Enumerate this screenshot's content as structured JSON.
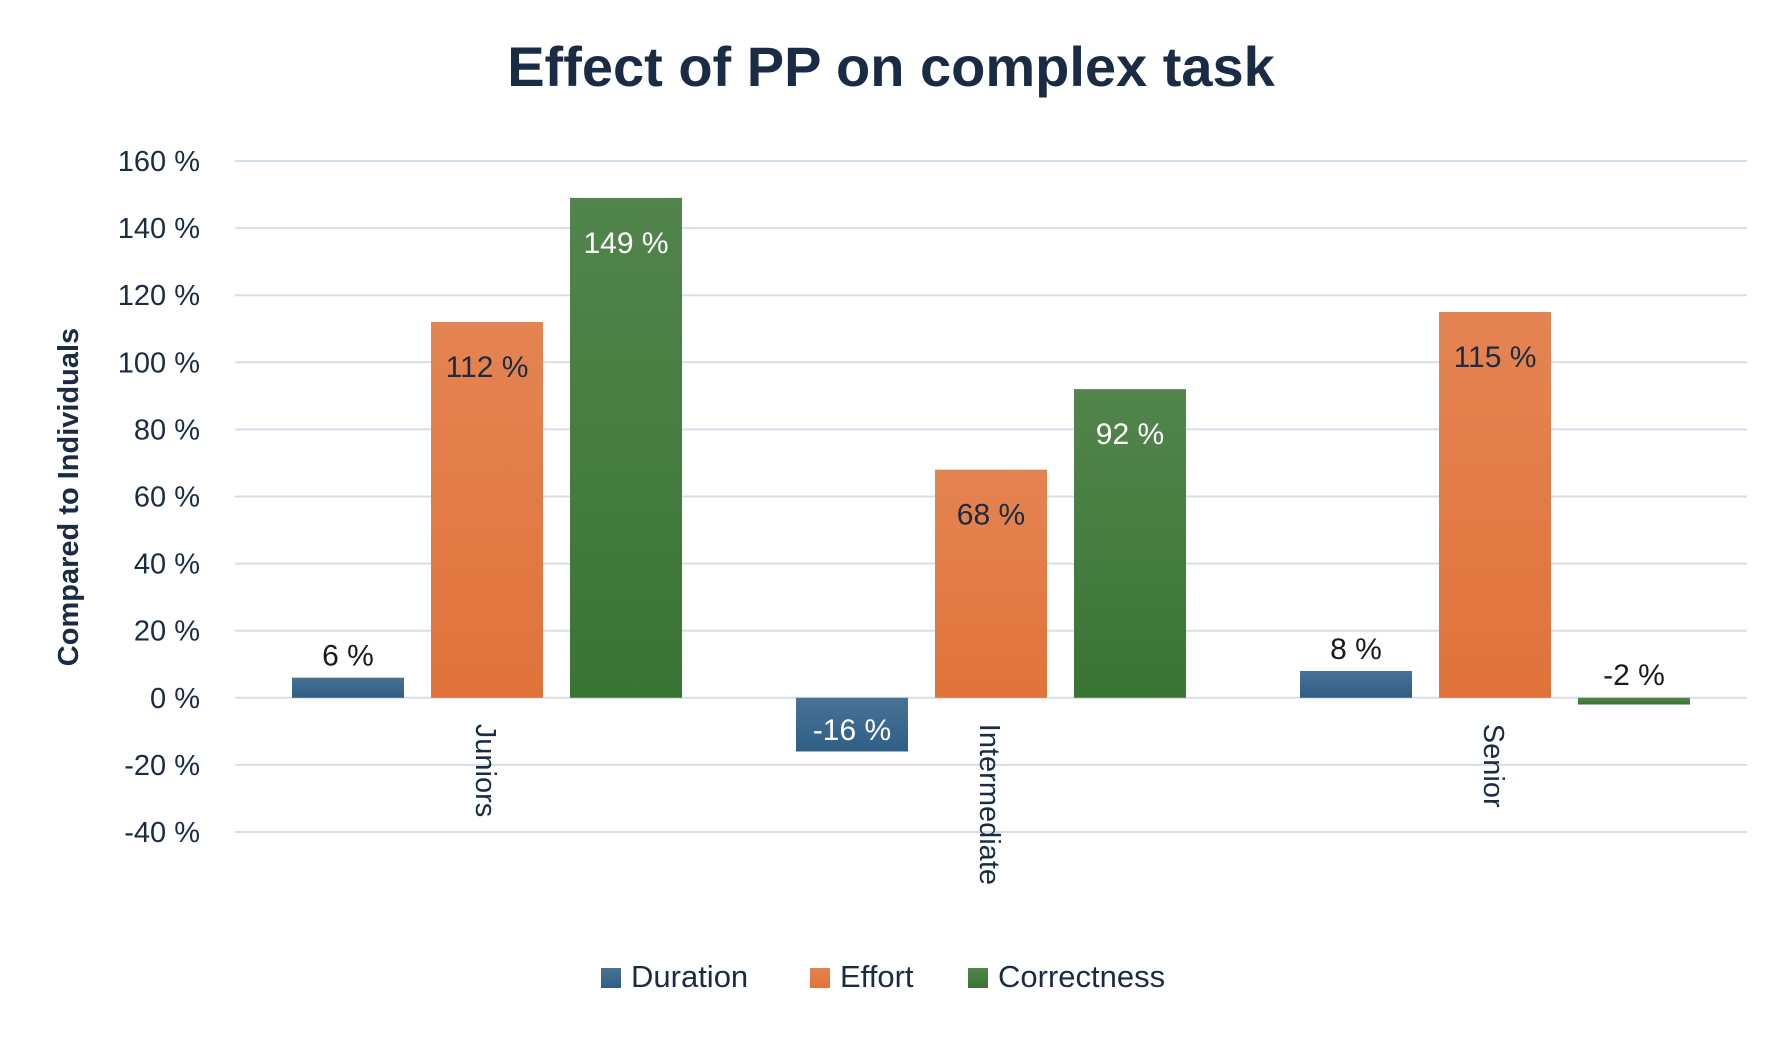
{
  "chart_data": {
    "type": "bar",
    "title": "Effect of PP on complex task",
    "xlabel": "",
    "ylabel": "Compared to Individuals",
    "categories": [
      "Juniors",
      "Intermediate",
      "Senior"
    ],
    "series": [
      {
        "name": "Duration",
        "values": [
          6,
          -16,
          8
        ],
        "color": "#2f5f86"
      },
      {
        "name": "Effort",
        "values": [
          112,
          68,
          115
        ],
        "color": "#e0733a"
      },
      {
        "name": "Correctness",
        "values": [
          149,
          92,
          -2
        ],
        "color": "#3a7434"
      }
    ],
    "data_labels": [
      [
        "6 %",
        "-16 %",
        "8 %"
      ],
      [
        "112 %",
        "68 %",
        "115 %"
      ],
      [
        "149 %",
        "92 %",
        "-2 %"
      ]
    ],
    "ylim": [
      -40,
      160
    ],
    "ytick_values": [
      160,
      140,
      120,
      100,
      80,
      60,
      40,
      20,
      0,
      -20,
      -40
    ],
    "ytick_labels": [
      "160 %",
      "140 %",
      "120 %",
      "100 %",
      "80 %",
      "60 %",
      "40 %",
      "20 %",
      "0 %",
      "-20 %",
      "-40 %"
    ],
    "grid": true,
    "legend_position": "bottom"
  }
}
